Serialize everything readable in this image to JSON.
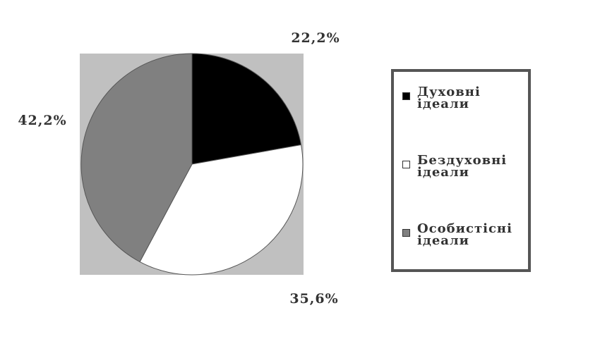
{
  "chart_data": {
    "type": "pie",
    "categories": [
      "Духовні ідеали",
      "Бездуховні ідеали",
      "Особистісні ідеали"
    ],
    "values": [
      22.2,
      35.6,
      42.2
    ],
    "value_labels": [
      "22,2%",
      "35,6%",
      "42,2%"
    ],
    "colors": [
      "#000000",
      "#ffffff",
      "#808080"
    ],
    "legend": "right"
  }
}
